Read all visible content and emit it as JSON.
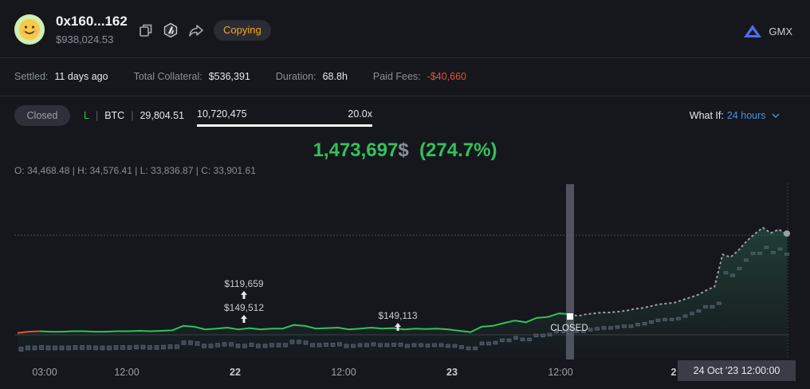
{
  "header": {
    "address": "0x160...162",
    "balance": "$938,024.53",
    "copying_label": "Copying",
    "exchange": "GMX"
  },
  "stats": {
    "settled_label": "Settled:",
    "settled_value": "11 days ago",
    "collateral_label": "Total Collateral:",
    "collateral_value": "$536,391",
    "duration_label": "Duration:",
    "duration_value": "68.8h",
    "fees_label": "Paid Fees:",
    "fees_value": "-$40,660"
  },
  "position": {
    "status": "Closed",
    "side": "L",
    "asset": "BTC",
    "entry": "29,804.51",
    "size": "10,720,475",
    "leverage": "20.0x"
  },
  "whatif": {
    "label": "What If:",
    "value": "24 hours"
  },
  "pnl": {
    "value": "1,473,697",
    "currency": "$",
    "percent": "(274.7%)"
  },
  "ohlc": "O: 34,468.48 | H: 34,576.41 | L: 33,836.87 | C: 33,901.61",
  "chart_data": {
    "type": "line",
    "x_ticks": [
      "03:00",
      "12:00",
      "22",
      "12:00",
      "23",
      "12:00",
      "2"
    ],
    "annotations": [
      "$119,659",
      "$149,512",
      "$149,113",
      "CLOSED"
    ],
    "pnl_line_solid": [
      0.2,
      0.35,
      0.4,
      0.35,
      0.35,
      0.4,
      0.4,
      0.35,
      0.35,
      0.4,
      0.4,
      0.45,
      0.4,
      0.45,
      0.5,
      1.0,
      0.9,
      0.6,
      0.7,
      0.8,
      0.6,
      0.75,
      0.6,
      0.7,
      0.7,
      1.1,
      1.0,
      0.7,
      0.75,
      0.8,
      0.6,
      0.7,
      0.8,
      0.7,
      0.75,
      0.6,
      0.7,
      0.65,
      0.7,
      0.6,
      0.45,
      0.3,
      0.9,
      1.0,
      1.3,
      1.6,
      1.4,
      1.9,
      2.0,
      2.4,
      2.3
    ],
    "pnl_line_dashed": [
      2.3,
      2.1,
      2.3,
      2.4,
      2.5,
      2.5,
      2.6,
      2.7,
      2.9,
      3.0,
      3.2,
      3.4,
      3.5,
      3.6,
      3.9,
      4.2,
      4.5,
      5.0,
      5.4,
      9.0,
      8.7,
      9.5,
      10.5,
      11.3,
      12.0,
      11.4,
      11.8,
      11.2
    ],
    "tooltip": "24 Oct '23   12:00:00"
  }
}
